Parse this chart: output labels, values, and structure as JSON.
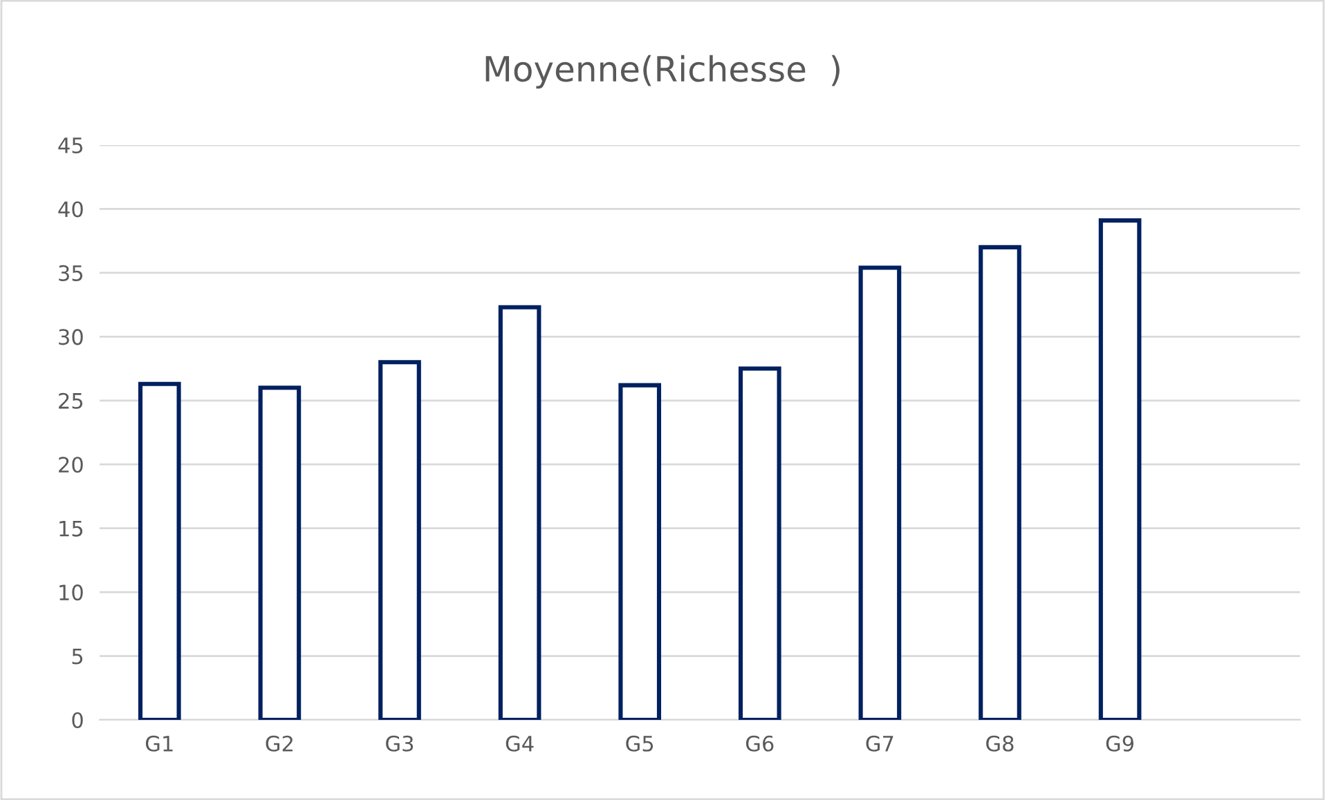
{
  "chart_data": {
    "type": "bar",
    "title": "Moyenne(Richesse  )",
    "categories": [
      "G1",
      "G2",
      "G3",
      "G4",
      "G5",
      "G6",
      "G7",
      "G8",
      "G9",
      null
    ],
    "values": [
      26.3,
      26.0,
      28.0,
      32.3,
      26.2,
      27.5,
      35.4,
      37.0,
      39.1,
      null
    ],
    "color": "#002060",
    "ylim": [
      0,
      45
    ],
    "yticks": [
      0,
      5,
      10,
      15,
      20,
      25,
      30,
      35,
      40,
      45
    ],
    "grid": "y",
    "legend": false
  }
}
